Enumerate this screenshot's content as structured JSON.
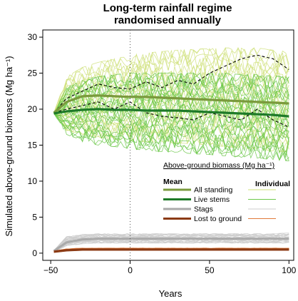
{
  "chart_data": {
    "type": "line",
    "title_lines": [
      "Long-term rainfall regime",
      "randomised annually"
    ],
    "xlabel": "Years",
    "ylabel": "Simulated above-ground biomass (Mg ha⁻¹)",
    "xlim": [
      -55,
      103
    ],
    "ylim": [
      -1,
      31
    ],
    "xticks": [
      -50,
      0,
      50,
      100
    ],
    "yticks": [
      0,
      5,
      10,
      15,
      20,
      25,
      30
    ],
    "xtick_labels": [
      "−50",
      "0",
      "50",
      "100"
    ],
    "ytick_labels": [
      "0",
      "5",
      "10",
      "15",
      "20",
      "25",
      "30"
    ],
    "vertical_reference_x": 0,
    "legend": {
      "title": "Above-ground biomass (Mg ha⁻¹)",
      "mean_header": "Mean",
      "individual_header": "Individual",
      "entries": [
        {
          "label": "All standing",
          "mean_color": "#7a9a3c",
          "individual_color": "#cfe07a"
        },
        {
          "label": "Live stems",
          "mean_color": "#1e7a28",
          "individual_color": "#6cc84a"
        },
        {
          "label": "Stags",
          "mean_color": "#aaaaaa",
          "individual_color": "#cccccc"
        },
        {
          "label": "Lost to ground",
          "mean_color": "#8b3a14",
          "individual_color": "#e07a3a"
        }
      ]
    },
    "mean_series": [
      {
        "name": "All standing",
        "color": "#7a9a3c",
        "x": [
          -48,
          -40,
          -30,
          -20,
          -10,
          0,
          10,
          20,
          30,
          40,
          50,
          60,
          70,
          80,
          90,
          100
        ],
        "y": [
          19.5,
          21.0,
          21.8,
          21.9,
          21.8,
          21.7,
          21.7,
          21.6,
          21.5,
          21.4,
          21.3,
          21.2,
          21.1,
          21.0,
          20.9,
          20.8
        ]
      },
      {
        "name": "Live stems",
        "color": "#1e7a28",
        "x": [
          -48,
          -40,
          -30,
          -20,
          -10,
          0,
          10,
          20,
          30,
          40,
          50,
          60,
          70,
          80,
          90,
          100
        ],
        "y": [
          19.4,
          19.7,
          19.9,
          20.0,
          19.9,
          19.9,
          19.8,
          19.8,
          19.8,
          19.7,
          19.6,
          19.5,
          19.4,
          19.3,
          19.2,
          19.0
        ]
      },
      {
        "name": "Stags",
        "color": "#aaaaaa",
        "x": [
          -48,
          -40,
          -30,
          -20,
          -10,
          0,
          10,
          20,
          30,
          40,
          50,
          60,
          70,
          80,
          90,
          100
        ],
        "y": [
          0.3,
          1.5,
          1.9,
          2.0,
          2.0,
          2.0,
          2.0,
          2.0,
          2.0,
          2.0,
          2.0,
          2.0,
          2.0,
          2.0,
          2.0,
          2.0
        ]
      },
      {
        "name": "Lost to ground",
        "color": "#8b3a14",
        "x": [
          -48,
          -40,
          -30,
          -20,
          -10,
          0,
          10,
          20,
          30,
          40,
          50,
          60,
          70,
          80,
          90,
          100
        ],
        "y": [
          0.2,
          0.4,
          0.5,
          0.5,
          0.5,
          0.5,
          0.5,
          0.5,
          0.5,
          0.5,
          0.5,
          0.5,
          0.5,
          0.5,
          0.5,
          0.5
        ]
      }
    ],
    "dashed_envelope": {
      "color": "#000000",
      "x": [
        -48,
        -40,
        -30,
        -20,
        -10,
        0,
        10,
        20,
        30,
        40,
        50,
        60,
        70,
        80,
        90,
        100
      ],
      "upper": [
        19.5,
        21.5,
        22.5,
        23.5,
        23.0,
        22.8,
        23.8,
        23.0,
        24.0,
        23.5,
        25.0,
        26.0,
        27.0,
        27.5,
        27.0,
        25.5
      ],
      "lower": [
        19.5,
        20.0,
        20.5,
        21.0,
        20.0,
        21.0,
        19.5,
        19.0,
        18.8,
        18.5,
        19.5,
        19.0,
        18.5,
        20.0,
        18.5,
        17.5
      ]
    },
    "individual_bands": [
      {
        "name": "All standing",
        "color": "#cfe07a",
        "x": [
          -48,
          -40,
          -30,
          -20,
          -10,
          0,
          10,
          20,
          30,
          40,
          50,
          60,
          70,
          80,
          90,
          100
        ],
        "low": [
          19.5,
          17.0,
          16.5,
          16.0,
          15.8,
          15.6,
          15.5,
          15.4,
          15.3,
          15.2,
          15.0,
          14.8,
          14.6,
          14.4,
          14.2,
          14.0
        ],
        "high": [
          19.5,
          24.5,
          25.8,
          26.5,
          27.0,
          27.5,
          27.8,
          28.0,
          28.2,
          28.3,
          28.4,
          28.5,
          28.5,
          28.5,
          28.2,
          28.0
        ]
      },
      {
        "name": "Live stems",
        "color": "#6cc84a",
        "x": [
          -48,
          -40,
          -30,
          -20,
          -10,
          0,
          10,
          20,
          30,
          40,
          50,
          60,
          70,
          80,
          90,
          100
        ],
        "low": [
          19.4,
          16.5,
          15.5,
          15.0,
          14.8,
          14.5,
          14.3,
          14.1,
          14.0,
          13.8,
          13.7,
          13.5,
          13.3,
          13.2,
          13.0,
          12.8
        ],
        "high": [
          19.4,
          23.0,
          24.0,
          24.5,
          24.8,
          25.0,
          25.0,
          25.0,
          25.0,
          25.0,
          25.0,
          25.0,
          24.8,
          24.8,
          24.6,
          24.5
        ]
      },
      {
        "name": "Stags",
        "color": "#cccccc",
        "x": [
          -48,
          -40,
          -30,
          -20,
          -10,
          0,
          10,
          20,
          30,
          40,
          50,
          60,
          70,
          80,
          90,
          100
        ],
        "low": [
          0.2,
          1.0,
          1.3,
          1.4,
          1.4,
          1.4,
          1.4,
          1.4,
          1.4,
          1.4,
          1.4,
          1.4,
          1.4,
          1.4,
          1.4,
          1.4
        ],
        "high": [
          0.4,
          2.3,
          2.6,
          2.7,
          2.7,
          2.7,
          2.7,
          2.7,
          2.7,
          2.7,
          2.7,
          2.7,
          2.7,
          2.7,
          2.7,
          2.8
        ]
      },
      {
        "name": "Lost to ground",
        "color": "#e07a3a",
        "x": [
          -48,
          -40,
          -30,
          -20,
          -10,
          0,
          10,
          20,
          30,
          40,
          50,
          60,
          70,
          80,
          90,
          100
        ],
        "low": [
          0.1,
          0.3,
          0.4,
          0.4,
          0.4,
          0.4,
          0.4,
          0.4,
          0.4,
          0.4,
          0.4,
          0.4,
          0.4,
          0.4,
          0.4,
          0.4
        ],
        "high": [
          0.3,
          0.6,
          0.7,
          0.7,
          0.7,
          0.7,
          0.7,
          0.7,
          0.7,
          0.7,
          0.7,
          0.7,
          0.7,
          0.7,
          0.7,
          0.7
        ]
      }
    ]
  }
}
